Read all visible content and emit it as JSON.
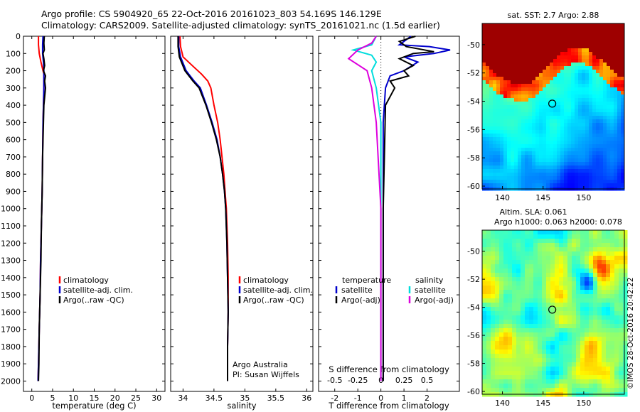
{
  "titles": {
    "line1": "Argo profile: CS 5904920_65 22-Oct-2016 20161023_803 54.169S 146.129E",
    "line2": "Climatology: CARS2009. Satellite-adjusted climatology: synTS_20161021.nc (1.5d earlier)"
  },
  "credit": {
    "line1": "Argo Australia",
    "line2": "PI: Susan Wijffels",
    "copyright": "©IMOS 28-Oct-2016 20:42:22"
  },
  "colors": {
    "climatology": "#ff0000",
    "satellite": "#0000cc",
    "argo": "#000000",
    "sat_salinity": "#00dddd",
    "argo_salinity": "#dd00dd"
  },
  "chart_data": [
    {
      "type": "line",
      "id": "temperature",
      "xlabel": "temperature (deg C)",
      "xlim": [
        -2,
        32
      ],
      "ylim": [
        2060,
        0
      ],
      "xticks": [
        "0",
        "5",
        "10",
        "15",
        "20",
        "25",
        "30"
      ],
      "xtick_values": [
        0,
        5,
        10,
        15,
        20,
        25,
        30
      ],
      "yticks": [
        "0",
        "100",
        "200",
        "300",
        "400",
        "500",
        "600",
        "700",
        "800",
        "900",
        "1000",
        "1100",
        "1200",
        "1300",
        "1400",
        "1500",
        "1600",
        "1700",
        "1800",
        "1900",
        "2000"
      ],
      "legend": [
        "climatology",
        "satellite-adj. clim.",
        "Argo(..raw -QC)"
      ],
      "series": [
        {
          "name": "climatology",
          "color": "#ff0000",
          "points": [
            [
              1.6,
              0
            ],
            [
              1.6,
              50
            ],
            [
              1.8,
              100
            ],
            [
              2.2,
              150
            ],
            [
              2.6,
              190
            ],
            [
              2.9,
              220
            ],
            [
              2.9,
              300
            ],
            [
              2.8,
              400
            ],
            [
              2.7,
              500
            ],
            [
              2.6,
              700
            ],
            [
              2.5,
              900
            ],
            [
              2.3,
              1100
            ],
            [
              2.1,
              1300
            ],
            [
              2.0,
              1500
            ],
            [
              1.8,
              1700
            ],
            [
              1.6,
              1900
            ],
            [
              1.5,
              2000
            ]
          ]
        },
        {
          "name": "satellite-adj. clim.",
          "color": "#0000cc",
          "points": [
            [
              2.7,
              0
            ],
            [
              2.6,
              50
            ],
            [
              2.6,
              100
            ],
            [
              2.8,
              150
            ],
            [
              2.9,
              200
            ],
            [
              2.9,
              300
            ],
            [
              2.8,
              400
            ],
            [
              2.7,
              500
            ],
            [
              2.6,
              700
            ],
            [
              2.5,
              900
            ],
            [
              2.3,
              1100
            ],
            [
              2.1,
              1300
            ],
            [
              2.0,
              1500
            ],
            [
              1.8,
              1700
            ],
            [
              1.6,
              1900
            ],
            [
              1.5,
              2000
            ]
          ]
        },
        {
          "name": "Argo(..raw -QC)",
          "color": "#000000",
          "points": [
            [
              3.0,
              0
            ],
            [
              2.9,
              40
            ],
            [
              3.0,
              80
            ],
            [
              2.7,
              100
            ],
            [
              2.9,
              130
            ],
            [
              3.1,
              170
            ],
            [
              2.8,
              200
            ],
            [
              3.3,
              230
            ],
            [
              3.1,
              260
            ],
            [
              3.3,
              300
            ],
            [
              2.9,
              400
            ],
            [
              2.8,
              500
            ],
            [
              2.6,
              700
            ],
            [
              2.5,
              900
            ],
            [
              2.3,
              1100
            ],
            [
              2.2,
              1300
            ],
            [
              2.0,
              1500
            ],
            [
              1.8,
              1700
            ],
            [
              1.7,
              1900
            ],
            [
              1.6,
              2000
            ]
          ]
        }
      ]
    },
    {
      "type": "line",
      "id": "salinity",
      "xlabel": "salinity",
      "xlim": [
        33.8,
        36.1
      ],
      "ylim": [
        2060,
        0
      ],
      "xticks": [
        "34",
        "34.5",
        "35",
        "35.5",
        "36"
      ],
      "xtick_values": [
        34,
        34.5,
        35,
        35.5,
        36
      ],
      "legend": [
        "climatology",
        "satellite-adj. clim.",
        "Argo(..raw -QC)"
      ],
      "series": [
        {
          "name": "climatology",
          "color": "#ff0000",
          "points": [
            [
              33.95,
              0
            ],
            [
              33.96,
              60
            ],
            [
              34.0,
              120
            ],
            [
              34.15,
              170
            ],
            [
              34.3,
              220
            ],
            [
              34.4,
              260
            ],
            [
              34.45,
              300
            ],
            [
              34.5,
              400
            ],
            [
              34.56,
              500
            ],
            [
              34.6,
              600
            ],
            [
              34.63,
              700
            ],
            [
              34.66,
              800
            ],
            [
              34.68,
              900
            ],
            [
              34.7,
              1000
            ],
            [
              34.72,
              1200
            ],
            [
              34.73,
              1400
            ],
            [
              34.73,
              1600
            ],
            [
              34.72,
              1800
            ],
            [
              34.72,
              2000
            ]
          ]
        },
        {
          "name": "satellite-adj. clim.",
          "color": "#0000cc",
          "points": [
            [
              33.93,
              0
            ],
            [
              33.93,
              60
            ],
            [
              33.96,
              120
            ],
            [
              34.05,
              200
            ],
            [
              34.18,
              260
            ],
            [
              34.28,
              300
            ],
            [
              34.38,
              400
            ],
            [
              34.47,
              500
            ],
            [
              34.55,
              600
            ],
            [
              34.6,
              700
            ],
            [
              34.64,
              800
            ],
            [
              34.67,
              900
            ],
            [
              34.69,
              1000
            ],
            [
              34.71,
              1200
            ],
            [
              34.72,
              1400
            ],
            [
              34.73,
              1600
            ],
            [
              34.72,
              1800
            ],
            [
              34.72,
              2000
            ]
          ]
        },
        {
          "name": "Argo(..raw -QC)",
          "color": "#000000",
          "points": [
            [
              33.92,
              0
            ],
            [
              33.92,
              60
            ],
            [
              33.94,
              120
            ],
            [
              34.03,
              200
            ],
            [
              34.16,
              260
            ],
            [
              34.26,
              300
            ],
            [
              34.37,
              400
            ],
            [
              34.46,
              500
            ],
            [
              34.54,
              600
            ],
            [
              34.6,
              700
            ],
            [
              34.64,
              800
            ],
            [
              34.67,
              900
            ],
            [
              34.69,
              1000
            ],
            [
              34.71,
              1200
            ],
            [
              34.72,
              1400
            ],
            [
              34.73,
              1600
            ],
            [
              34.72,
              1800
            ],
            [
              34.72,
              2000
            ]
          ]
        }
      ]
    },
    {
      "type": "line",
      "id": "difference",
      "xlabel": "T difference from climatology",
      "xlabel_top": "S difference from climatology",
      "xlim": [
        -2.7,
        3.4
      ],
      "ylim": [
        2060,
        0
      ],
      "xticks": [
        "-2",
        "-1",
        "0",
        "1",
        "2"
      ],
      "xtick_values": [
        -2,
        -1,
        0,
        1,
        2
      ],
      "sticks": [
        "-0.5",
        "-0.25",
        "0",
        "0.25",
        "0.5"
      ],
      "stick_values": [
        -0.5,
        -0.25,
        0,
        0.25,
        0.5
      ],
      "legend_headers": [
        "temperature",
        "salinity"
      ],
      "legend": [
        "satellite",
        "Argo(-adj)",
        "satellite",
        "Argo(-adj)"
      ],
      "series": [
        {
          "name": "satellite",
          "group": "temperature",
          "color": "#0000cc",
          "points": [
            [
              1.3,
              0
            ],
            [
              1.1,
              20
            ],
            [
              0.8,
              50
            ],
            [
              2.1,
              60
            ],
            [
              3.0,
              80
            ],
            [
              2.3,
              100
            ],
            [
              1.0,
              120
            ],
            [
              1.6,
              150
            ],
            [
              1.0,
              200
            ],
            [
              0.4,
              230
            ],
            [
              0.2,
              300
            ],
            [
              0.1,
              500
            ],
            [
              0.1,
              1000
            ],
            [
              0.1,
              1500
            ],
            [
              0.1,
              2000
            ]
          ]
        },
        {
          "name": "Argo(-adj)",
          "group": "temperature",
          "color": "#000000",
          "points": [
            [
              1.5,
              0
            ],
            [
              0.8,
              30
            ],
            [
              1.1,
              60
            ],
            [
              2.3,
              90
            ],
            [
              1.4,
              100
            ],
            [
              0.8,
              130
            ],
            [
              1.4,
              170
            ],
            [
              1.0,
              200
            ],
            [
              1.2,
              230
            ],
            [
              0.4,
              260
            ],
            [
              0.6,
              300
            ],
            [
              0.2,
              400
            ],
            [
              0.1,
              1000
            ],
            [
              0.1,
              2000
            ]
          ]
        },
        {
          "name": "satellite",
          "group": "salinity",
          "color": "#00dddd",
          "points": [
            [
              -0.05,
              0
            ],
            [
              -0.1,
              50
            ],
            [
              -0.3,
              80
            ],
            [
              -0.1,
              110
            ],
            [
              -0.05,
              150
            ],
            [
              -0.1,
              200
            ],
            [
              -0.05,
              300
            ],
            [
              0,
              500
            ],
            [
              0,
              1000
            ],
            [
              0,
              1500
            ],
            [
              0,
              2000
            ]
          ]
        },
        {
          "name": "Argo(-adj)",
          "group": "salinity",
          "color": "#dd00dd",
          "points": [
            [
              -0.05,
              0
            ],
            [
              -0.1,
              40
            ],
            [
              -0.25,
              80
            ],
            [
              -0.35,
              130
            ],
            [
              -0.15,
              200
            ],
            [
              -0.1,
              300
            ],
            [
              -0.05,
              500
            ],
            [
              0,
              1000
            ],
            [
              0,
              2000
            ]
          ]
        }
      ]
    },
    {
      "type": "heatmap",
      "id": "sst-map",
      "title": "sat. SST: 2.7 Argo: 2.88",
      "xticks": [
        "140",
        "145",
        "150"
      ],
      "xtick_values": [
        140,
        145,
        150
      ],
      "yticks": [
        "-50",
        "-52",
        "-54",
        "-56",
        "-58",
        "-60"
      ],
      "ytick_values": [
        -50,
        -52,
        -54,
        -56,
        -58,
        -60
      ],
      "xlim": [
        137.5,
        155
      ],
      "ylim": [
        -60.2,
        -48.5
      ],
      "marker": {
        "lon": 146.129,
        "lat": -54.169
      }
    },
    {
      "type": "heatmap",
      "id": "sla-map",
      "title": "Altim. SLA: 0.061",
      "subtitle": "Argo h1000: 0.063 h2000: 0.078",
      "xticks": [
        "140",
        "145",
        "150"
      ],
      "xtick_values": [
        140,
        145,
        150
      ],
      "yticks": [
        "-50",
        "-52",
        "-54",
        "-56",
        "-58",
        "-60"
      ],
      "ytick_values": [
        -50,
        -52,
        -54,
        -56,
        -58,
        -60
      ],
      "xlim": [
        137.5,
        155
      ],
      "ylim": [
        -60.2,
        -48.5
      ],
      "marker": {
        "lon": 146.129,
        "lat": -54.169
      }
    }
  ]
}
